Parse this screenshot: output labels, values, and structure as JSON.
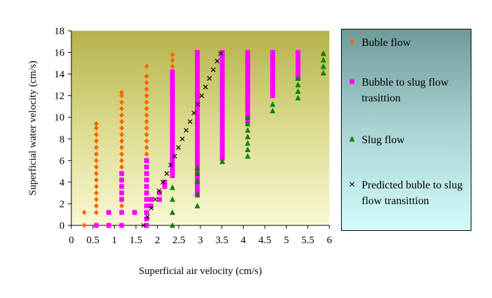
{
  "chart_data": {
    "type": "scatter",
    "xlabel": "Superficial air velocity (cm/s)",
    "ylabel": "Superficial water velocity (cm/s)",
    "xlim": [
      0,
      6
    ],
    "xticks": [
      0,
      0.5,
      1,
      1.5,
      2,
      2.5,
      3,
      3.5,
      4,
      4.5,
      5,
      5.5,
      6
    ],
    "ylim": [
      0,
      18
    ],
    "yticks": [
      0,
      2,
      4,
      6,
      8,
      10,
      12,
      14,
      16,
      18
    ],
    "grid": false,
    "legend": "right",
    "series": [
      {
        "name": "Buble flow",
        "color": "#ff6600",
        "marker": "diamond",
        "x": [
          0.3,
          0.3,
          0.58,
          0.58,
          0.58,
          0.58,
          0.58,
          0.58,
          0.58,
          0.58,
          0.58,
          0.58,
          0.58,
          0.58,
          0.58,
          0.58,
          0.58,
          0.58,
          1.17,
          1.17,
          1.17,
          1.17,
          1.17,
          1.17,
          1.17,
          1.17,
          1.17,
          1.17,
          1.17,
          1.17,
          1.17,
          1.17,
          1.17,
          1.17,
          1.17,
          1.17,
          1.17,
          1.75,
          1.75,
          1.75,
          1.75,
          1.75,
          1.75,
          1.75,
          1.75,
          1.75,
          1.75,
          1.75,
          1.75,
          1.75,
          1.75,
          1.75,
          2.35,
          2.35,
          2.35,
          2.35
        ],
        "values": [
          0,
          1.2,
          0,
          1.2,
          1.8,
          2.4,
          3,
          3.6,
          4.2,
          4.8,
          5.4,
          6,
          6.6,
          7.2,
          7.8,
          8.4,
          9,
          9.4,
          1.8,
          2.4,
          3.6,
          4.2,
          4.8,
          5.4,
          6,
          6.6,
          7.2,
          7.8,
          8.4,
          9,
          9.6,
          10.2,
          10.8,
          11.4,
          12,
          12.3,
          3,
          6,
          6.6,
          7.2,
          7.8,
          8.4,
          9,
          9.6,
          10.2,
          10.8,
          11.4,
          12,
          12.6,
          13.2,
          13.8,
          14.7,
          14.1,
          14.7,
          15.3,
          15.8
        ]
      },
      {
        "name": "Bubble to slug flow trasittion",
        "color": "#ff00ff",
        "marker": "square",
        "x": [
          0.58,
          0.87,
          0.87,
          1.17,
          1.17,
          1.17,
          1.17,
          1.17,
          1.17,
          1.17,
          1.47,
          1.75,
          1.75,
          1.75,
          1.75,
          1.75,
          1.75,
          1.75,
          1.75,
          1.75,
          1.75,
          1.75,
          1.85,
          1.85,
          2.05,
          2.05,
          2.17,
          2.17,
          2.35,
          2.35,
          2.35,
          2.35,
          2.35,
          2.35,
          2.35,
          2.35,
          2.35,
          2.35,
          2.35,
          2.35,
          2.35,
          2.35,
          2.35,
          2.35,
          2.35,
          2.35,
          2.35,
          2.35,
          2.35,
          2.35,
          2.35,
          2.35,
          2.35,
          2.93,
          2.93,
          2.93,
          2.93,
          2.93,
          2.93,
          2.93,
          2.93,
          2.93,
          2.93,
          2.93,
          2.93,
          2.93,
          2.93,
          2.93,
          2.93,
          2.93,
          2.93,
          2.93,
          2.93,
          2.93,
          2.93,
          2.93,
          2.93,
          2.93,
          2.93,
          2.93,
          2.93,
          2.93,
          2.93,
          2.93,
          2.93,
          2.93,
          2.93,
          3.51,
          3.51,
          3.51,
          3.51,
          3.51,
          3.51,
          3.51,
          3.51,
          3.51,
          3.51,
          3.51,
          3.51,
          3.51,
          3.51,
          3.51,
          3.51,
          3.51,
          3.51,
          3.51,
          3.51,
          3.51,
          3.51,
          3.51,
          3.51,
          3.51,
          3.51,
          4.1,
          4.1,
          4.1,
          4.1,
          4.1,
          4.1,
          4.1,
          4.1,
          4.1,
          4.1,
          4.1,
          4.1,
          4.1,
          4.1,
          4.1,
          4.1,
          4.1,
          4.68,
          4.68,
          4.68,
          4.68,
          4.68,
          4.68,
          4.68,
          4.68,
          4.68,
          4.68,
          4.68,
          5.27,
          5.27,
          5.27,
          5.27,
          5.27,
          5.27,
          5.27
        ],
        "values": [
          0,
          0,
          1.2,
          0,
          1.2,
          2.4,
          3,
          3.6,
          4.2,
          4.8,
          1.2,
          0,
          0.6,
          1.2,
          1.8,
          2.4,
          3,
          3.6,
          4.2,
          4.8,
          5.4,
          6,
          1.8,
          2.4,
          2.4,
          3,
          3.6,
          4,
          4.6,
          5,
          5.4,
          5.8,
          6.2,
          6.6,
          7,
          7.4,
          7.8,
          8.2,
          8.6,
          9,
          9.4,
          9.8,
          10.2,
          10.6,
          11,
          11.4,
          11.8,
          12.2,
          12.6,
          13,
          13.4,
          13.8,
          14.2,
          2.8,
          3.2,
          3.6,
          4,
          4.4,
          4.8,
          5.2,
          5.6,
          6,
          6.4,
          6.8,
          7.2,
          7.6,
          8,
          8.4,
          8.8,
          9.2,
          9.6,
          10,
          10.4,
          10.8,
          11.2,
          11.6,
          12,
          12.4,
          12.8,
          13.2,
          13.6,
          14,
          14.4,
          14.8,
          15.2,
          15.6,
          16,
          6.2,
          6.6,
          7,
          7.4,
          7.8,
          8.2,
          8.6,
          9,
          9.4,
          9.8,
          10.2,
          10.6,
          11,
          11.4,
          11.8,
          12.2,
          12.6,
          13,
          13.4,
          13.8,
          14.2,
          14.6,
          15,
          15.4,
          15.8,
          16,
          9.6,
          10,
          10.4,
          10.8,
          11.2,
          11.6,
          12,
          12.4,
          12.8,
          13.2,
          13.6,
          14,
          14.4,
          14.8,
          15.2,
          15.6,
          16,
          12,
          12.4,
          12.8,
          13.2,
          13.6,
          14,
          14.4,
          14.8,
          15.2,
          15.6,
          16,
          13.6,
          14,
          14.4,
          14.8,
          15.2,
          15.6,
          16
        ]
      },
      {
        "name": "Slug flow",
        "color": "#008000",
        "marker": "triangle",
        "x": [
          2.35,
          2.35,
          2.35,
          2.35,
          2.93,
          2.93,
          2.93,
          2.93,
          2.93,
          3.51,
          4.1,
          4.1,
          4.1,
          4.1,
          4.1,
          4.1,
          4.1,
          4.68,
          4.68,
          5.27,
          5.27,
          5.27,
          5.27,
          5.86,
          5.86,
          5.86,
          5.86
        ],
        "values": [
          0,
          1.2,
          2.4,
          3.5,
          1.8,
          2.9,
          4.1,
          4.8,
          5.3,
          5.9,
          6.4,
          7,
          7.6,
          8.2,
          8.8,
          9.4,
          10,
          10.6,
          11.2,
          11.8,
          12.4,
          13,
          13.6,
          14.1,
          14.7,
          15.3,
          15.9
        ]
      },
      {
        "name": "Predicted buble to slug flow transittion",
        "color": "#000000",
        "marker": "x",
        "x": [
          1.68,
          1.77,
          1.86,
          1.95,
          2.04,
          2.13,
          2.22,
          2.31,
          2.4,
          2.49,
          2.58,
          2.67,
          2.76,
          2.85,
          2.94,
          3.03,
          3.12,
          3.21,
          3.3,
          3.39,
          3.47
        ],
        "values": [
          0,
          0.8,
          1.6,
          2.4,
          3.2,
          4,
          4.8,
          5.6,
          6.4,
          7.2,
          8,
          8.8,
          9.6,
          10.4,
          11.2,
          12,
          12.8,
          13.6,
          14.4,
          15.2,
          15.9
        ]
      }
    ]
  }
}
